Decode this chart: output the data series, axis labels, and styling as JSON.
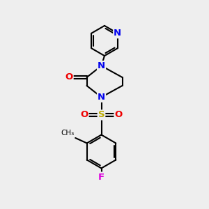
{
  "bg_color": "#eeeeee",
  "bond_color": "#000000",
  "bond_width": 1.5,
  "atom_colors": {
    "N": "#0000ee",
    "O": "#ee0000",
    "F": "#dd00dd",
    "S": "#bbaa00",
    "C": "#000000"
  },
  "font_size": 9.5
}
